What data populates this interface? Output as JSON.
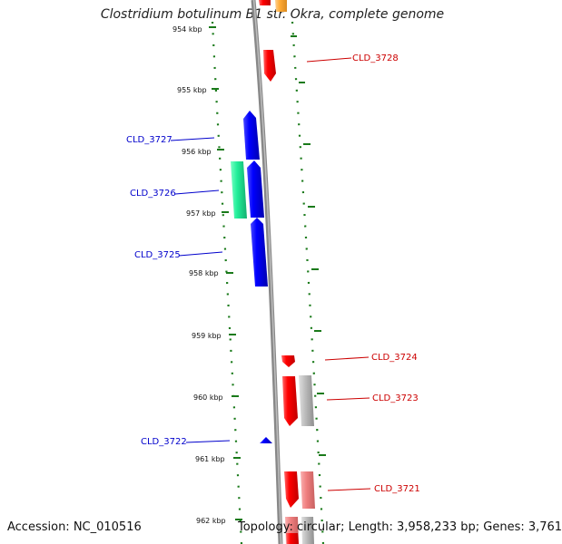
{
  "header": {
    "title": "Clostridium botulinum B1 str. Okra, complete genome"
  },
  "footer": {
    "accession": "Accession: NC_010516",
    "stats": "Topology: circular; Length: 3,958,233 bp; Genes: 3,761"
  },
  "ruler": {
    "ticks": [
      {
        "kbp": 954,
        "label": "954 kbp"
      },
      {
        "kbp": 955,
        "label": "955 kbp"
      },
      {
        "kbp": 956,
        "label": "956 kbp"
      },
      {
        "kbp": 957,
        "label": "957 kbp"
      },
      {
        "kbp": 958,
        "label": "958 kbp"
      },
      {
        "kbp": 959,
        "label": "959 kbp"
      },
      {
        "kbp": 960,
        "label": "960 kbp"
      },
      {
        "kbp": 961,
        "label": "961 kbp"
      },
      {
        "kbp": 962,
        "label": "962 kbp"
      }
    ]
  },
  "colors": {
    "forward_label": "#cc0000",
    "reverse_label": "#0000cc",
    "backbone": "#888888",
    "ticks": "#1a7a1a",
    "feature_red": "#ff0000",
    "feature_blue": "#0000ff",
    "feature_teal": "#22ee99",
    "feature_grey": "#b8b8b8",
    "feature_pink": "#f08080",
    "feature_orange": "#ffaa33"
  },
  "genes": [
    {
      "name": "CLD_3728",
      "strand": "forward",
      "color": "#ff0000"
    },
    {
      "name": "CLD_3727",
      "strand": "reverse",
      "color": "#0000ff"
    },
    {
      "name": "CLD_3726",
      "strand": "reverse",
      "color": "#0000ff"
    },
    {
      "name": "CLD_3725",
      "strand": "reverse",
      "color": "#0000ff"
    },
    {
      "name": "CLD_3724",
      "strand": "forward",
      "color": "#ff0000"
    },
    {
      "name": "CLD_3723",
      "strand": "forward",
      "color": "#ff0000"
    },
    {
      "name": "CLD_3722",
      "strand": "reverse",
      "color": "#0000ff"
    },
    {
      "name": "CLD_3721",
      "strand": "forward",
      "color": "#ff0000"
    }
  ]
}
